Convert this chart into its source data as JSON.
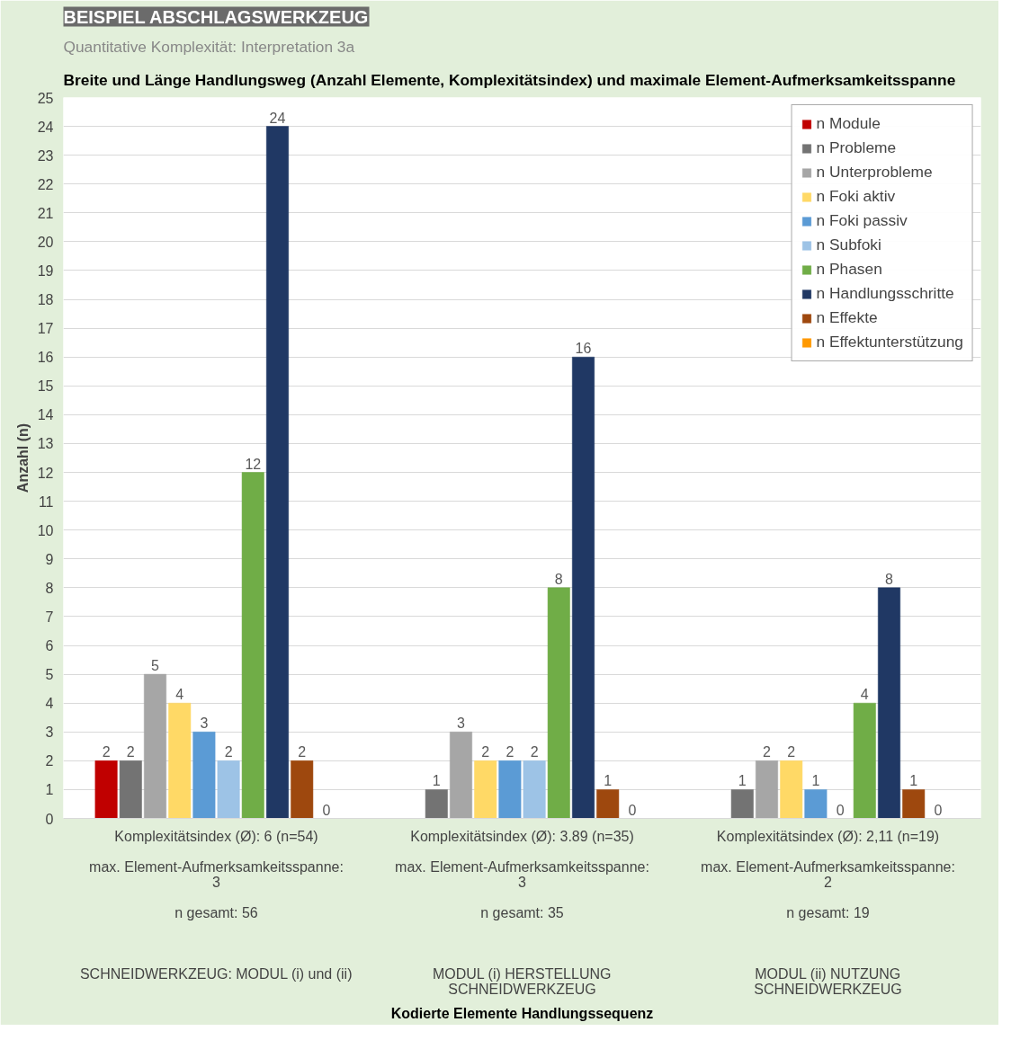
{
  "chart_data": {
    "type": "bar",
    "title": "BEISPIEL ABSCHLAGSWERKZEUG",
    "subtitle": "Quantitative Komplexität: Interpretation 3a",
    "annotations": [
      "Breite und Länge Handlungsweg (Anzahl Elemente, Komplexitätsindex) und maximale Element-Aufmerksamkeitsspanne",
      "Kodierte Elemente Handlungssequenz"
    ],
    "ylabel": "Anzahl (n)",
    "categories": [
      "Komplexitätsindex (Ø): 6 (n=54)\n\nmax. Element-Aufmerksamkeitsspanne:\n3\n\nn gesamt: 56\n\n\n\nSCHNEIDWERKZEUG: MODUL (i) und (ii)",
      "Komplexitätsindex (Ø): 3.89 (n=35)\n\nmax. Element-Aufmerksamkeitsspanne:\n3\n\nn gesamt: 35\n\n\n\nMODUL (i) HERSTELLUNG\nSCHNEIDWERKZEUG",
      "Komplexitätsindex (Ø): 2,11 (n=19)\n\nmax. Element-Aufmerksamkeitsspanne:\n2\n\nn gesamt: 19\n\n\n\nMODUL (ii) NUTZUNG\nSCHNEIDWERKZEUG"
    ],
    "series": [
      {
        "name": "n Module",
        "color": "#c00000",
        "values": [
          2,
          null,
          null
        ]
      },
      {
        "name": "n Probleme",
        "color": "#737373",
        "values": [
          2,
          1,
          1
        ]
      },
      {
        "name": "n Unterprobleme",
        "color": "#a6a6a6",
        "values": [
          5,
          3,
          2
        ]
      },
      {
        "name": "n Foki aktiv",
        "color": "#ffd966",
        "values": [
          4,
          2,
          2
        ]
      },
      {
        "name": "n Foki passiv",
        "color": "#5b9bd5",
        "values": [
          3,
          2,
          1
        ]
      },
      {
        "name": "n Subfoki",
        "color": "#9dc3e6",
        "values": [
          2,
          2,
          0
        ]
      },
      {
        "name": "n Phasen",
        "color": "#70ad47",
        "values": [
          12,
          8,
          4
        ]
      },
      {
        "name": "n Handlungsschritte",
        "color": "#203864",
        "values": [
          24,
          16,
          8
        ]
      },
      {
        "name": "n Effekte",
        "color": "#9e480e",
        "values": [
          2,
          1,
          1
        ]
      },
      {
        "name": "n Effektunterstützung",
        "color": "#ff9900",
        "values": [
          0,
          0,
          0
        ]
      }
    ],
    "ylim": [
      0,
      25
    ],
    "yticks": [
      0,
      1,
      2,
      3,
      4,
      5,
      6,
      7,
      8,
      9,
      10,
      11,
      12,
      13,
      14,
      15,
      16,
      17,
      18,
      19,
      20,
      21,
      22,
      23,
      24,
      25
    ],
    "grid": "y",
    "legend": "top right",
    "data_labels": true
  }
}
